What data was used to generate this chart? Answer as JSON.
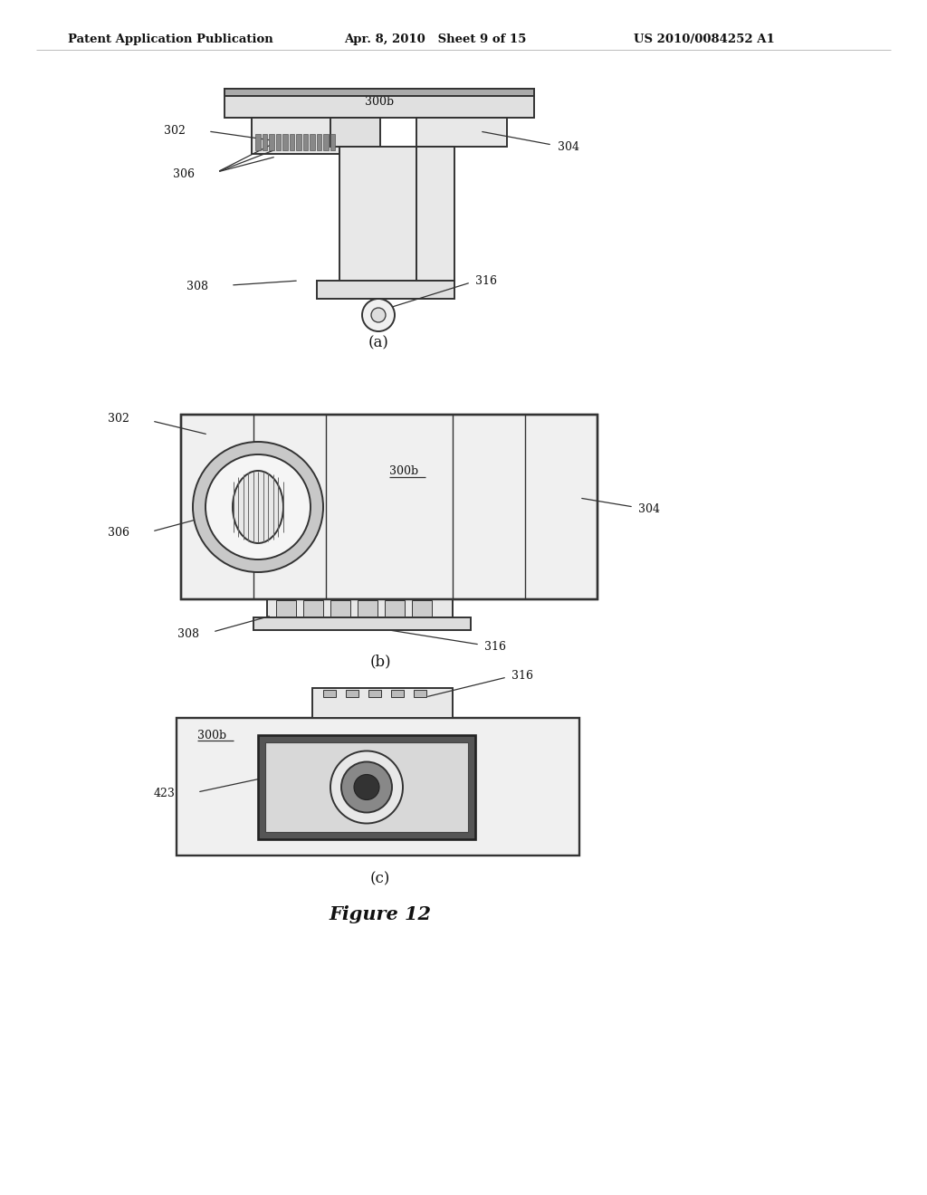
{
  "bg_color": "#ffffff",
  "header_left": "Patent Application Publication",
  "header_mid": "Apr. 8, 2010   Sheet 9 of 15",
  "header_right": "US 2010/0084252 A1",
  "figure_title": "Figure 12",
  "line_color": "#333333",
  "lw": 1.4
}
